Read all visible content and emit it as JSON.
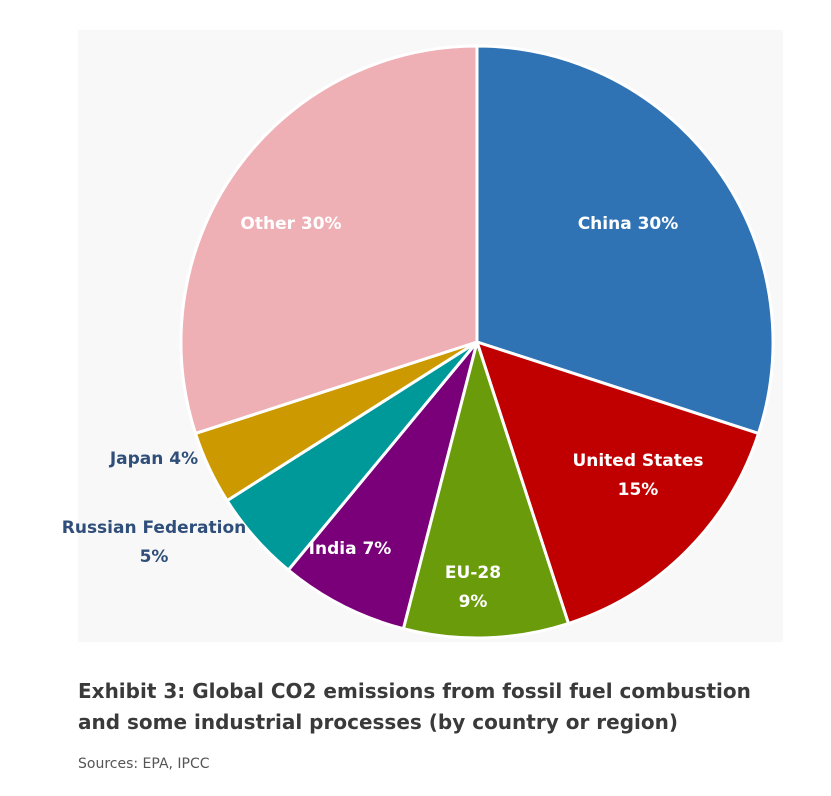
{
  "chart_data": {
    "type": "pie",
    "title": "",
    "start_angle_deg": 0,
    "slices": [
      {
        "label": "China 30%",
        "value": 30,
        "color": "#2f73b5",
        "label_pos": "inside"
      },
      {
        "label": "United States 15%",
        "value": 15,
        "color": "#c00000",
        "label_pos": "inside"
      },
      {
        "label": "EU-28 9%",
        "value": 9,
        "color": "#6a9b0b",
        "label_pos": "inside"
      },
      {
        "label": "India 7%",
        "value": 7,
        "color": "#7a007a",
        "label_pos": "inside"
      },
      {
        "label": "Russian Federation 5%",
        "value": 5,
        "color": "#009999",
        "label_pos": "outside"
      },
      {
        "label": "Japan 4%",
        "value": 4,
        "color": "#cc9900",
        "label_pos": "outside"
      },
      {
        "label": "Other 30%",
        "value": 30,
        "color": "#efb0b5",
        "label_pos": "inside"
      }
    ]
  },
  "caption": {
    "title": "Exhibit 3: Global CO2 emissions from fossil fuel combustion and some industrial processes (by country or region)",
    "sources": "Sources: EPA, IPCC"
  }
}
